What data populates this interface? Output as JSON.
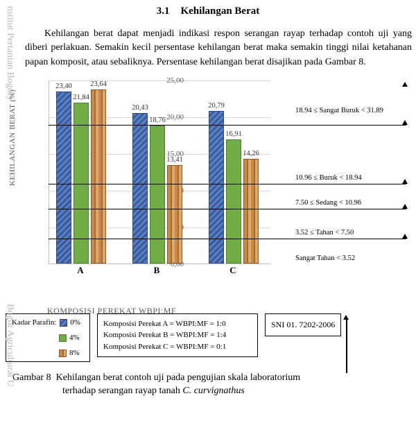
{
  "watermark": {
    "top": "Institut Pertanian Bogor)",
    "bottom": "Bogor Agricultural U"
  },
  "heading": {
    "num": "3.1",
    "title": "Kehilangan Berat"
  },
  "paragraph": "Kehilangan berat dapat menjadi indikasi respon serangan rayap terhadap contoh uji yang diberi perlakuan. Semakin kecil persentase kehilangan berat maka semakin tinggi nilai ketahanan papan komposit, atau sebaliknya. Persentase kehilangan berat disajikan pada Gambar 8.",
  "chart": {
    "type": "bar",
    "ylabel": "KEHILANGAN BERAT (%)",
    "xlabel": "KOMPOSISI  PEREKAT  WBPI:MF",
    "ylim": [
      0,
      25
    ],
    "ytick_step": 5,
    "yticks": [
      "0,00",
      "5,00",
      "10,00",
      "15,00",
      "20,00",
      "25,00"
    ],
    "categories": [
      "A",
      "B",
      "C"
    ],
    "series": [
      {
        "parafin": "0%",
        "values": [
          23.4,
          20.43,
          20.79
        ],
        "labels": [
          "23,40",
          "20,43",
          "20,79"
        ],
        "class": "p0"
      },
      {
        "parafin": "4%",
        "values": [
          21.84,
          18.76,
          16.91
        ],
        "labels": [
          "21,84",
          "18,76",
          "16,91"
        ],
        "class": "p4"
      },
      {
        "parafin": "8%",
        "values": [
          23.64,
          13.41,
          14.26
        ],
        "labels": [
          "23,64",
          "13,41",
          "14,26"
        ],
        "class": "p8"
      }
    ],
    "thresholds": [
      {
        "low": 18.94,
        "label": "18.94 ≤ Sangat Buruk < 31.89",
        "arrow_top": true
      },
      {
        "low": 10.96,
        "label": "10.96 ≤ Buruk < 18.94"
      },
      {
        "low": 7.5,
        "label": "7.50 ≤ Sedang < 10.96"
      },
      {
        "low": 3.52,
        "label": "3.52 ≤ Tahan < 7.50"
      },
      {
        "low": 0,
        "label": "Sangat  Tahan < 3.52",
        "noline": true
      }
    ],
    "colors": {
      "p0": "#3b5a9a",
      "p4": "#70ad47",
      "p8": "#c68a4a",
      "grid": "#d9d9d9",
      "axis": "#bfbfbf"
    }
  },
  "legend": {
    "parafin_title": "Kadar Parafin:",
    "parafin": [
      "0%",
      "4%",
      "8%"
    ],
    "komposisi": [
      "Komposisi Perekat A = WBPI:MF = 1:0",
      "Komposisi Perekat B = WBPI:MF = 1:4",
      "Komposisi Perekat C = WBPI:MF = 0:1"
    ],
    "sni": "SNI 01. 7202-2006"
  },
  "caption": {
    "label": "Gambar 8",
    "text_line1": "Kehilangan berat contoh uji pada pengujian skala laboratorium",
    "text_line2": "terhadap serangan rayap tanah ",
    "species": "C. curvignathus"
  }
}
